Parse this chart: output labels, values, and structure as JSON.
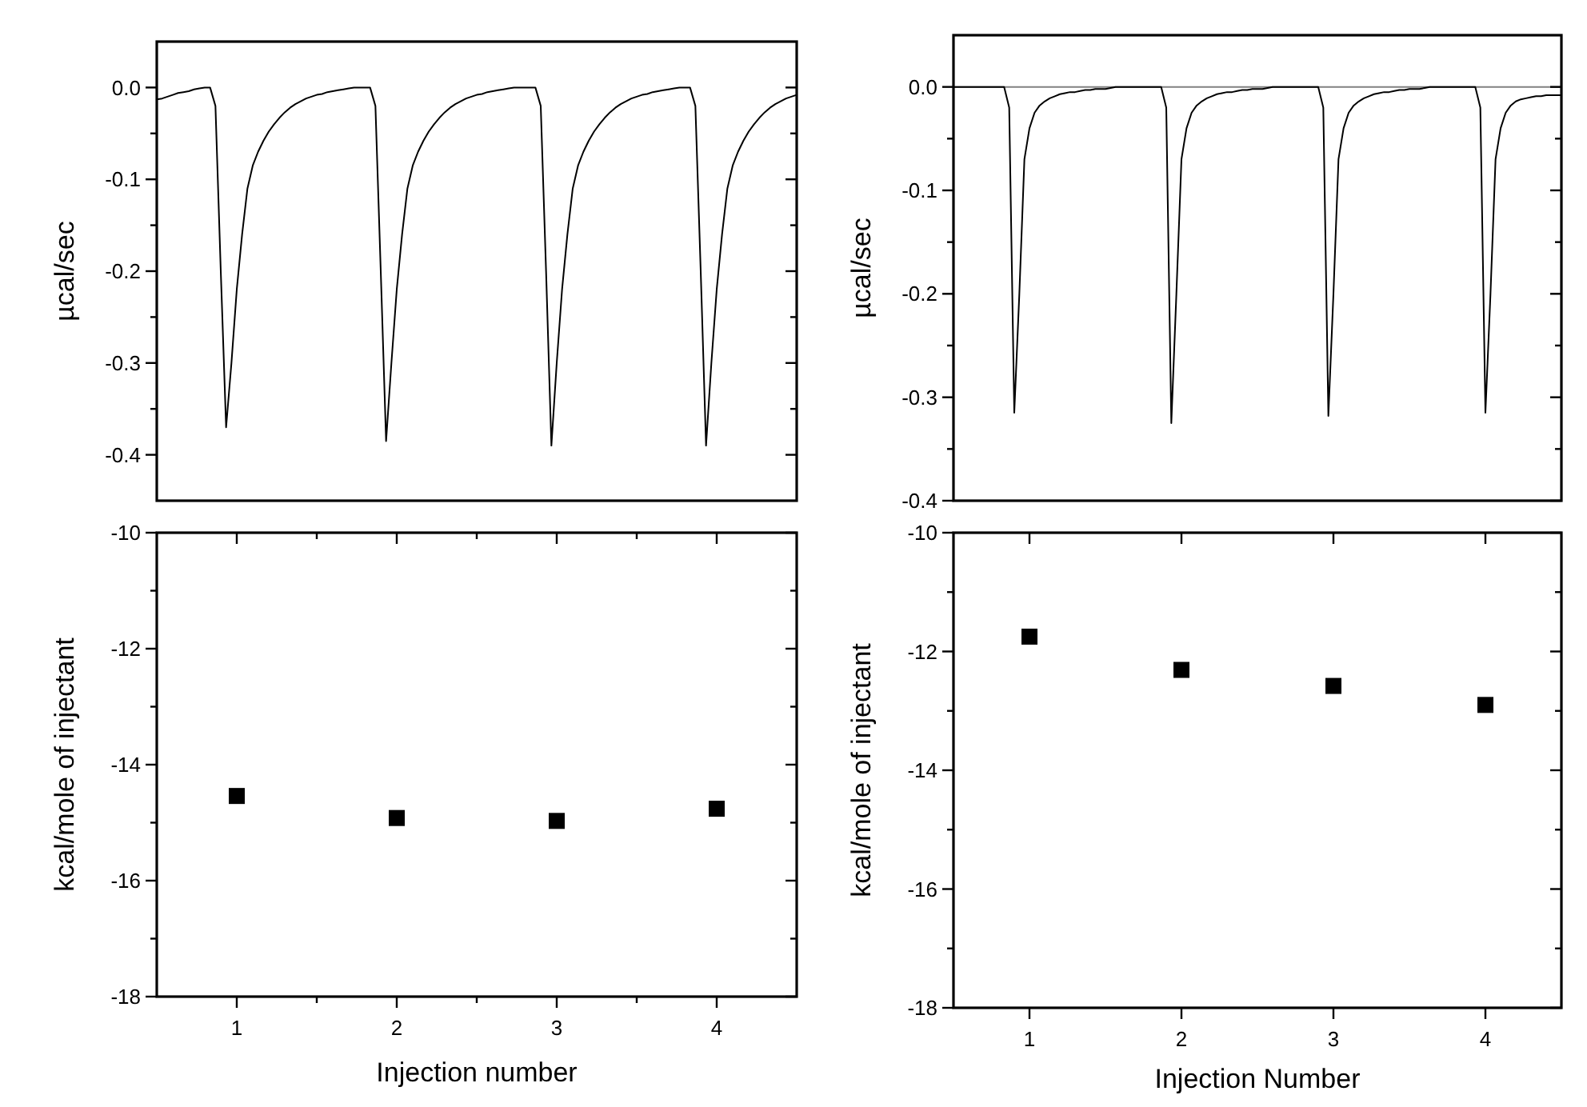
{
  "chart_data": [
    {
      "type": "line",
      "ylabel": "µcal/sec",
      "tick_labels": "y",
      "categories": [
        null,
        null,
        null,
        null,
        null,
        null,
        null,
        null,
        null,
        null,
        null,
        null,
        null,
        null,
        null,
        null,
        null,
        null,
        null,
        null,
        null,
        null,
        null,
        null,
        null,
        null,
        null,
        null,
        null,
        null,
        null,
        null,
        null,
        null,
        null,
        null,
        null,
        null,
        null,
        null,
        null,
        null,
        null,
        null,
        null,
        null,
        null,
        null,
        null,
        null,
        null,
        null,
        null,
        null,
        null,
        null,
        null,
        null,
        null,
        null,
        null,
        null,
        null,
        null,
        null,
        null,
        null,
        null,
        null,
        null,
        null,
        null,
        null,
        null,
        null,
        null,
        null,
        null,
        null,
        null,
        null,
        null,
        null,
        null,
        null,
        null,
        null,
        null,
        null,
        null,
        null,
        null,
        null,
        null,
        null,
        null,
        null,
        null,
        null,
        null,
        null,
        null,
        null,
        null,
        null,
        null,
        null,
        null,
        null,
        null,
        null,
        null,
        null,
        null,
        null,
        null,
        null,
        null,
        null,
        null,
        null
      ],
      "series": [
        {
          "color": "#000000",
          "values": [
            -0.013,
            -0.012,
            -0.01,
            -0.008,
            -0.006,
            -0.005,
            -0.004,
            -0.002,
            -0.001,
            0,
            0,
            -0.02,
            -0.2,
            -0.37,
            -0.3,
            -0.22,
            -0.16,
            -0.11,
            -0.085,
            -0.07,
            -0.058,
            -0.048,
            -0.04,
            -0.033,
            -0.027,
            -0.022,
            -0.018,
            -0.015,
            -0.012,
            -0.01,
            -0.008,
            -0.007,
            -0.005,
            -0.004,
            -0.003,
            -0.002,
            -0.001,
            0,
            0,
            0,
            0,
            -0.02,
            -0.2,
            -0.385,
            -0.3,
            -0.22,
            -0.16,
            -0.11,
            -0.085,
            -0.07,
            -0.058,
            -0.048,
            -0.04,
            -0.033,
            -0.027,
            -0.022,
            -0.018,
            -0.015,
            -0.012,
            -0.01,
            -0.008,
            -0.007,
            -0.005,
            -0.004,
            -0.003,
            -0.002,
            -0.001,
            0,
            0,
            0,
            0,
            0,
            -0.02,
            -0.2,
            -0.39,
            -0.3,
            -0.22,
            -0.16,
            -0.11,
            -0.085,
            -0.07,
            -0.058,
            -0.048,
            -0.04,
            -0.033,
            -0.027,
            -0.022,
            -0.018,
            -0.015,
            -0.012,
            -0.01,
            -0.008,
            -0.007,
            -0.005,
            -0.004,
            -0.003,
            -0.002,
            -0.001,
            0,
            0,
            0,
            -0.02,
            -0.2,
            -0.39,
            -0.3,
            -0.22,
            -0.16,
            -0.11,
            -0.085,
            -0.07,
            -0.058,
            -0.048,
            -0.04,
            -0.033,
            -0.027,
            -0.022,
            -0.018,
            -0.015,
            -0.012,
            -0.01,
            -0.008
          ]
        }
      ],
      "ylim": [
        -0.45,
        0.05
      ],
      "yticks": [
        {
          "value": 0,
          "label": "0.0"
        },
        {
          "value": -0.05,
          "label": null
        },
        -0.1,
        {
          "value": -0.15,
          "label": null
        },
        -0.2,
        {
          "value": -0.25,
          "label": null
        },
        -0.3,
        {
          "value": -0.35,
          "label": null
        },
        -0.4
      ]
    },
    {
      "type": "line",
      "ylabel": "µcal/sec",
      "tick_labels": "y",
      "categories": [
        null,
        null,
        null,
        null,
        null,
        null,
        null,
        null,
        null,
        null,
        null,
        null,
        null,
        null,
        null,
        null,
        null,
        null,
        null,
        null,
        null,
        null,
        null,
        null,
        null,
        null,
        null,
        null,
        null,
        null,
        null,
        null,
        null,
        null,
        null,
        null,
        null,
        null,
        null,
        null,
        null,
        null,
        null,
        null,
        null,
        null,
        null,
        null,
        null,
        null,
        null,
        null,
        null,
        null,
        null,
        null,
        null,
        null,
        null,
        null,
        null,
        null,
        null,
        null,
        null,
        null,
        null,
        null,
        null,
        null,
        null,
        null,
        null,
        null,
        null,
        null,
        null,
        null,
        null,
        null,
        null,
        null,
        null,
        null,
        null,
        null,
        null,
        null,
        null,
        null,
        null,
        null,
        null,
        null,
        null,
        null,
        null,
        null,
        null,
        null,
        null,
        null,
        null,
        null,
        null,
        null,
        null,
        null,
        null,
        null,
        null,
        null,
        null,
        null,
        null,
        null,
        null,
        null,
        null,
        null,
        null
      ],
      "series": [
        {
          "color": "#000000",
          "values": [
            0,
            0,
            0,
            0,
            0,
            0,
            0,
            0,
            0,
            0,
            0,
            -0.02,
            -0.315,
            -0.2,
            -0.07,
            -0.04,
            -0.025,
            -0.018,
            -0.014,
            -0.011,
            -0.009,
            -0.007,
            -0.006,
            -0.005,
            -0.005,
            -0.004,
            -0.003,
            -0.003,
            -0.002,
            -0.002,
            -0.002,
            -0.001,
            0,
            0,
            0,
            0,
            0,
            0,
            0,
            0,
            0,
            0,
            -0.02,
            -0.325,
            -0.2,
            -0.07,
            -0.04,
            -0.025,
            -0.018,
            -0.014,
            -0.011,
            -0.009,
            -0.007,
            -0.006,
            -0.005,
            -0.005,
            -0.004,
            -0.003,
            -0.003,
            -0.002,
            -0.002,
            -0.002,
            -0.001,
            0,
            0,
            0,
            0,
            0,
            0,
            0,
            0,
            0,
            0,
            -0.02,
            -0.318,
            -0.2,
            -0.07,
            -0.04,
            -0.025,
            -0.018,
            -0.014,
            -0.011,
            -0.009,
            -0.007,
            -0.006,
            -0.005,
            -0.005,
            -0.004,
            -0.003,
            -0.003,
            -0.002,
            -0.002,
            -0.002,
            -0.001,
            0,
            0,
            0,
            0,
            0,
            0,
            0,
            0,
            0,
            0,
            -0.02,
            -0.315,
            -0.2,
            -0.07,
            -0.04,
            -0.025,
            -0.018,
            -0.014,
            -0.012,
            -0.011,
            -0.01,
            -0.009,
            -0.009,
            -0.008,
            -0.008,
            -0.008,
            -0.008
          ]
        }
      ],
      "ylim": [
        -0.4,
        0.05
      ],
      "yticks": [
        {
          "value": 0,
          "label": "0.0"
        },
        {
          "value": -0.05,
          "label": null
        },
        -0.1,
        {
          "value": -0.15,
          "label": null
        },
        -0.2,
        {
          "value": -0.25,
          "label": null
        },
        -0.3,
        {
          "value": -0.35,
          "label": null
        },
        -0.4
      ],
      "ref_lines": [
        {
          "axis": "y",
          "value": 0,
          "color": "#808080"
        }
      ]
    },
    {
      "type": "scatter",
      "xlabel": "Injection number",
      "ylabel": "kcal/mole of injectant",
      "marker": "square",
      "x": [
        1,
        2,
        3,
        4
      ],
      "series": [
        {
          "color": "#000000",
          "values": [
            -14.54,
            -14.92,
            -14.97,
            -14.76
          ]
        }
      ],
      "xlim": [
        0.5,
        4.5
      ],
      "xticks": [
        1,
        {
          "value": 1.5,
          "label": null
        },
        2,
        {
          "value": 2.5,
          "label": null
        },
        3,
        {
          "value": 3.5,
          "label": null
        },
        4
      ],
      "ylim": [
        -18,
        -10
      ],
      "yticks": [
        -10,
        {
          "value": -11,
          "label": null
        },
        -12,
        {
          "value": -13,
          "label": null
        },
        -14,
        {
          "value": -15,
          "label": null
        },
        -16,
        {
          "value": -17,
          "label": null
        },
        -18
      ]
    },
    {
      "type": "scatter",
      "xlabel": "Injection Number",
      "ylabel": "kcal/mole of injectant",
      "marker": "square",
      "x": [
        1,
        2,
        3,
        4
      ],
      "series": [
        {
          "color": "#000000",
          "values": [
            -11.75,
            -12.31,
            -12.58,
            -12.9
          ]
        }
      ],
      "xlim": [
        0.5,
        4.5
      ],
      "xticks": [
        1,
        2,
        3,
        4
      ],
      "ylim": [
        -18,
        -10
      ],
      "yticks": [
        -10,
        {
          "value": -11,
          "label": null
        },
        -12,
        {
          "value": -13,
          "label": null
        },
        -14,
        {
          "value": -15,
          "label": null
        },
        -16,
        {
          "value": -17,
          "label": null
        },
        -18
      ]
    }
  ]
}
